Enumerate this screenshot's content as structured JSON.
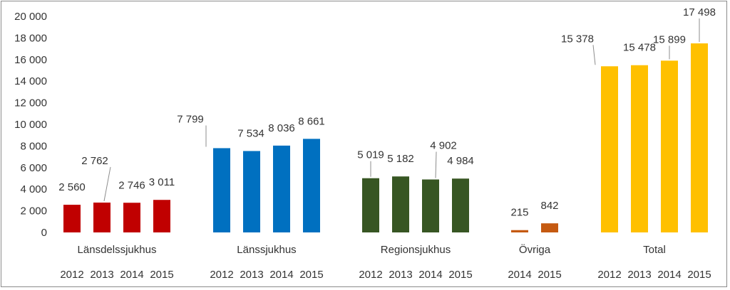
{
  "chart_data": {
    "type": "bar",
    "title": "",
    "xlabel": "",
    "ylabel": "",
    "ylim": [
      0,
      20000
    ],
    "yticks": [
      0,
      2000,
      4000,
      6000,
      8000,
      10000,
      12000,
      14000,
      16000,
      18000,
      20000
    ],
    "ytick_labels": [
      "0",
      "2 000",
      "4 000",
      "6 000",
      "8 000",
      "10 000",
      "12 000",
      "14 000",
      "16 000",
      "18 000",
      "20 000"
    ],
    "grid": false,
    "legend": "none",
    "groups": [
      {
        "name": "Länsdelssjukhus",
        "color": "#C00000",
        "years": [
          "2012",
          "2013",
          "2014",
          "2015"
        ],
        "values": [
          2560,
          2762,
          2746,
          3011
        ],
        "labels": [
          "2 560",
          "2 762",
          "2 746",
          "3 011"
        ]
      },
      {
        "name": "Länssjukhus",
        "color": "#0070C0",
        "years": [
          "2012",
          "2013",
          "2014",
          "2015"
        ],
        "values": [
          7799,
          7534,
          8036,
          8661
        ],
        "labels": [
          "7 799",
          "7 534",
          "8 036",
          "8 661"
        ]
      },
      {
        "name": "Regionsjukhus",
        "color": "#375623",
        "years": [
          "2012",
          "2013",
          "2014",
          "2015"
        ],
        "values": [
          5019,
          5182,
          4902,
          4984
        ],
        "labels": [
          "5 019",
          "5 182",
          "4 902",
          "4 984"
        ]
      },
      {
        "name": "Övriga",
        "color": "#C55A11",
        "years": [
          "2014",
          "2015"
        ],
        "values": [
          215,
          842
        ],
        "labels": [
          "215",
          "842"
        ]
      },
      {
        "name": "Total",
        "color": "#FFC000",
        "years": [
          "2012",
          "2013",
          "2014",
          "2015"
        ],
        "values": [
          15378,
          15478,
          15899,
          17498
        ],
        "labels": [
          "15 378",
          "15 478",
          "15 899",
          "17 498"
        ]
      }
    ]
  }
}
